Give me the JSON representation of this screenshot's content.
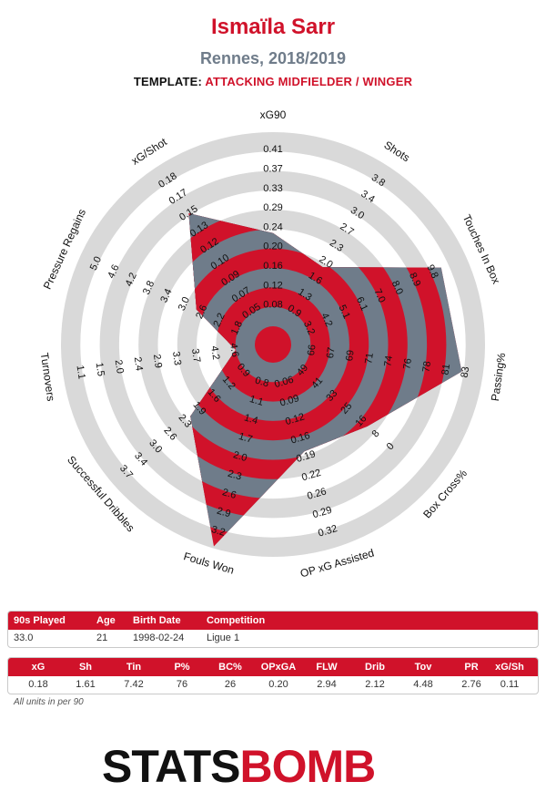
{
  "header": {
    "player": "Ismaïla Sarr",
    "subtitle": "Rennes, 2018/2019",
    "template_label": "TEMPLATE:",
    "template_value": "ATTACKING MIDFIELDER / WINGER"
  },
  "colors": {
    "red": "#d0122a",
    "slate": "#6f7c8a",
    "ring_gray": "#d9d9d9"
  },
  "chart_data": {
    "type": "radar",
    "categories": [
      "xG90",
      "Shots",
      "Touches In Box",
      "Passing%",
      "Box Cross%",
      "OP xG Assisted",
      "Fouls Won",
      "Successful Dribbles",
      "Turnovers",
      "Pressure Regains",
      "xG/Shot"
    ],
    "ticks": [
      [
        "0.08",
        "0.12",
        "0.16",
        "0.20",
        "0.24",
        "0.29",
        "0.33",
        "0.37",
        "0.41"
      ],
      [
        "0.9",
        "1.3",
        "1.6",
        "2.0",
        "2.3",
        "2.7",
        "3.0",
        "3.4",
        "3.8"
      ],
      [
        "3.2",
        "4.2",
        "5.1",
        "6.1",
        "7.0",
        "8.0",
        "8.9",
        "9.8"
      ],
      [
        "66",
        "67",
        "69",
        "71",
        "74",
        "76",
        "78",
        "81",
        "83"
      ],
      [
        "49",
        "41",
        "33",
        "25",
        "16",
        "8",
        "0"
      ],
      [
        "0.06",
        "0.09",
        "0.12",
        "0.16",
        "0.19",
        "0.22",
        "0.26",
        "0.29",
        "0.32"
      ],
      [
        "0.8",
        "1.1",
        "1.4",
        "1.7",
        "2.0",
        "2.3",
        "2.6",
        "2.9",
        "3.2"
      ],
      [
        "0.9",
        "1.2",
        "1.6",
        "1.9",
        "2.3",
        "2.6",
        "3.0",
        "3.4",
        "3.7"
      ],
      [
        "4.6",
        "4.2",
        "3.7",
        "3.3",
        "2.9",
        "2.4",
        "2.0",
        "1.5",
        "1.1"
      ],
      [
        "1.8",
        "2.2",
        "2.6",
        "3.0",
        "3.4",
        "3.8",
        "4.2",
        "4.6",
        "5.0"
      ],
      [
        "0.05",
        "0.07",
        "0.09",
        "0.10",
        "0.12",
        "0.13",
        "0.15",
        "0.17",
        "0.18"
      ]
    ],
    "values": [
      0.18,
      1.61,
      7.42,
      76,
      26,
      0.2,
      2.94,
      2.12,
      4.48,
      2.76,
      0.11
    ],
    "scaled": [
      0.48,
      0.38,
      0.86,
      0.89,
      0.55,
      0.48,
      0.99,
      0.47,
      0.1,
      0.34,
      0.71
    ]
  },
  "table1": {
    "headers": [
      "90s Played",
      "Age",
      "Birth Date",
      "Competition"
    ],
    "values": [
      "33.0",
      "21",
      "1998-02-24",
      "Ligue 1"
    ]
  },
  "table2": {
    "headers": [
      "xG",
      "Sh",
      "Tin",
      "P%",
      "BC%",
      "OPxGA",
      "FLW",
      "Drib",
      "Tov",
      "PR",
      "xG/Sh"
    ],
    "values": [
      "0.18",
      "1.61",
      "7.42",
      "76",
      "26",
      "0.20",
      "2.94",
      "2.12",
      "4.48",
      "2.76",
      "0.11"
    ]
  },
  "footnote": "All units in per 90",
  "logo": {
    "part1": "STATS",
    "part2": "B",
    "part3": "O",
    "part4": "MB"
  }
}
